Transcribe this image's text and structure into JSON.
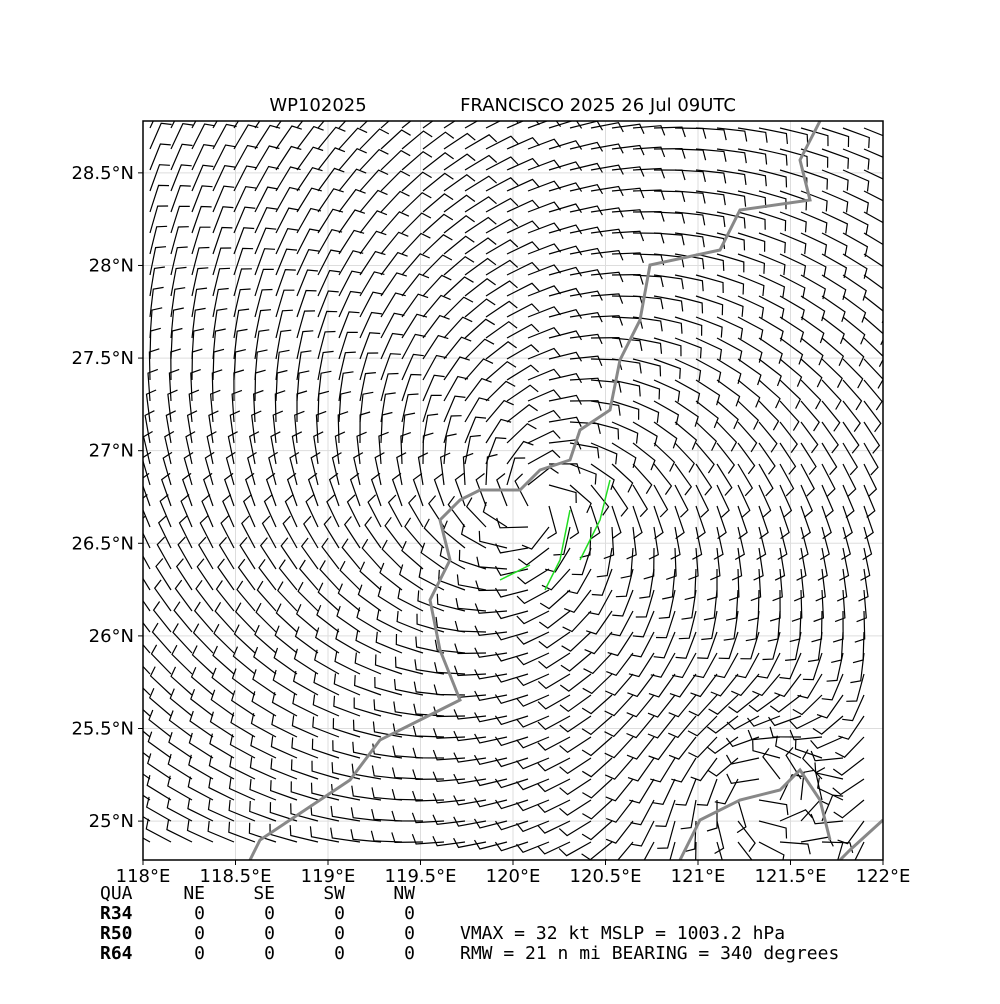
{
  "map": {
    "title_id": "WP102025",
    "title": "FRANCISCO 2025 26 Jul 09UTC",
    "xlim": [
      118,
      122
    ],
    "ylim": [
      24.79,
      28.78
    ],
    "xticks": [
      {
        "value": 118,
        "label": "118°E"
      },
      {
        "value": 118.5,
        "label": "118.5°E"
      },
      {
        "value": 119,
        "label": "119°E"
      },
      {
        "value": 119.5,
        "label": "119.5°E"
      },
      {
        "value": 120,
        "label": "120°E"
      },
      {
        "value": 120.5,
        "label": "120.5°E"
      },
      {
        "value": 121,
        "label": "121°E"
      },
      {
        "value": 121.5,
        "label": "121.5°E"
      },
      {
        "value": 122,
        "label": "122°E"
      }
    ],
    "yticks": [
      {
        "value": 25,
        "label": "25°N"
      },
      {
        "value": 25.5,
        "label": "25.5°N"
      },
      {
        "value": 26,
        "label": "26°N"
      },
      {
        "value": 26.5,
        "label": "26.5°N"
      },
      {
        "value": 27,
        "label": "27°N"
      },
      {
        "value": 27.5,
        "label": "27.5°N"
      },
      {
        "value": 28,
        "label": "28°N"
      },
      {
        "value": 28.5,
        "label": "28.5°N"
      }
    ],
    "grid": true
  },
  "table": {
    "header": [
      "QUA",
      "NE",
      "SE",
      "SW",
      "NW"
    ],
    "rows": [
      [
        "R34",
        0,
        0,
        0,
        0
      ],
      [
        "R50",
        0,
        0,
        0,
        0
      ],
      [
        "R64",
        0,
        0,
        0,
        0
      ]
    ]
  },
  "stats": [
    "VMAX =  32 kt MSLP = 1003.2 hPa",
    "RMW =  21 n mi BEARING = 340 degrees"
  ]
}
